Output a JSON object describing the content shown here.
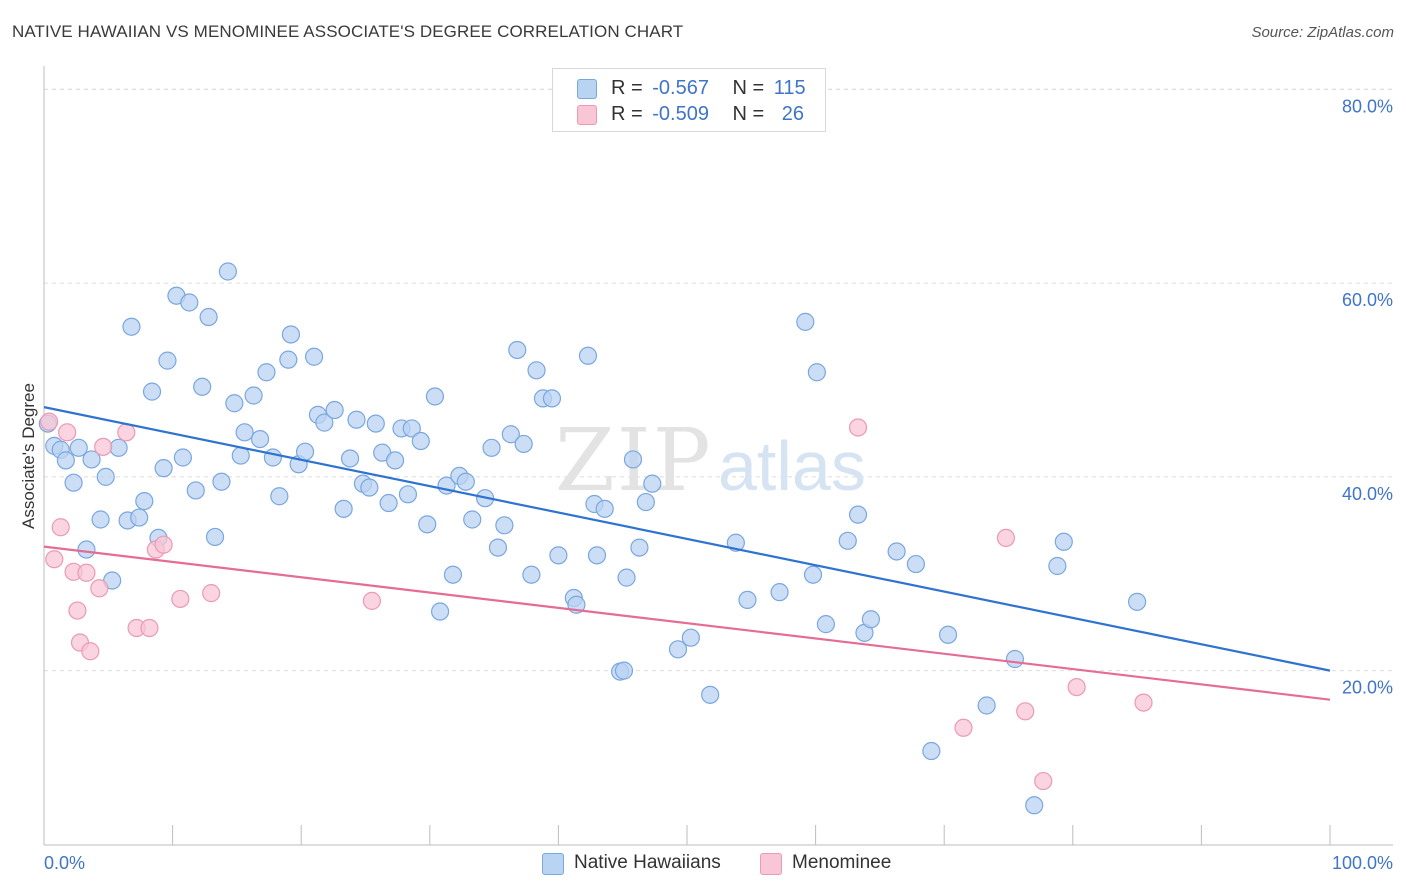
{
  "title": "NATIVE HAWAIIAN VS MENOMINEE ASSOCIATE'S DEGREE CORRELATION CHART",
  "source": "Source: ZipAtlas.com",
  "watermark": {
    "zip": "ZIP",
    "atlas": "atlas"
  },
  "colors": {
    "blue_fill": "#b9d3f3",
    "blue_stroke": "#7aa7de",
    "blue_line": "#2f73d0",
    "pink_fill": "#f8c6d5",
    "pink_stroke": "#ec99b4",
    "pink_line": "#e46c95",
    "tick_text": "#3f74c8",
    "grid": "#dcdcdc"
  },
  "legend": {
    "rows": [
      {
        "r_label": "R =",
        "r_value": "-0.567",
        "n_label": "N =",
        "n_value": "115"
      },
      {
        "r_label": "R =",
        "r_value": "-0.509",
        "n_label": "N =",
        "n_value": "26"
      }
    ]
  },
  "bottom_legend": {
    "series1": "Native Hawaiians",
    "series2": "Menominee"
  },
  "chart_data": {
    "type": "scatter",
    "xlabel": "",
    "ylabel": "Associate's Degree",
    "xlim": [
      0,
      100
    ],
    "ylim": [
      2,
      82
    ],
    "x_tick_labels": [
      "0.0%",
      "100.0%"
    ],
    "y_ticks": [
      20,
      40,
      60,
      80
    ],
    "y_tick_labels": [
      "20.0%",
      "40.0%",
      "60.0%",
      "80.0%"
    ],
    "grid": true,
    "series": [
      {
        "name": "Native Hawaiians",
        "trend": [
          [
            0,
            47.2
          ],
          [
            100,
            20.0
          ]
        ],
        "points": [
          [
            0.8,
            43.2
          ],
          [
            1.3,
            42.8
          ],
          [
            1.7,
            41.7
          ],
          [
            2.3,
            39.4
          ],
          [
            2.7,
            43.0
          ],
          [
            3.3,
            32.5
          ],
          [
            3.7,
            41.8
          ],
          [
            4.4,
            35.6
          ],
          [
            4.8,
            40.0
          ],
          [
            5.3,
            29.3
          ],
          [
            5.8,
            43.0
          ],
          [
            6.5,
            35.5
          ],
          [
            6.8,
            55.5
          ],
          [
            7.4,
            35.8
          ],
          [
            7.8,
            37.5
          ],
          [
            8.4,
            48.8
          ],
          [
            8.9,
            33.7
          ],
          [
            9.3,
            40.9
          ],
          [
            9.6,
            52.0
          ],
          [
            10.3,
            58.7
          ],
          [
            10.8,
            42.0
          ],
          [
            11.3,
            58.0
          ],
          [
            11.8,
            38.6
          ],
          [
            12.3,
            49.3
          ],
          [
            12.8,
            56.5
          ],
          [
            13.3,
            33.8
          ],
          [
            13.8,
            39.5
          ],
          [
            14.3,
            61.2
          ],
          [
            14.8,
            47.6
          ],
          [
            15.3,
            42.2
          ],
          [
            15.6,
            44.6
          ],
          [
            16.3,
            48.4
          ],
          [
            16.8,
            43.9
          ],
          [
            17.3,
            50.8
          ],
          [
            17.8,
            42.0
          ],
          [
            18.3,
            38.0
          ],
          [
            19.0,
            52.1
          ],
          [
            19.2,
            54.7
          ],
          [
            19.8,
            41.3
          ],
          [
            20.3,
            42.6
          ],
          [
            21.0,
            52.4
          ],
          [
            21.3,
            46.4
          ],
          [
            21.8,
            45.6
          ],
          [
            22.6,
            46.9
          ],
          [
            23.3,
            36.7
          ],
          [
            23.8,
            41.9
          ],
          [
            24.3,
            45.9
          ],
          [
            24.8,
            39.3
          ],
          [
            25.3,
            38.9
          ],
          [
            25.8,
            45.5
          ],
          [
            26.3,
            42.5
          ],
          [
            26.8,
            37.3
          ],
          [
            27.3,
            41.7
          ],
          [
            27.8,
            45.0
          ],
          [
            28.3,
            38.2
          ],
          [
            28.6,
            45.0
          ],
          [
            29.3,
            43.7
          ],
          [
            29.8,
            35.1
          ],
          [
            30.4,
            48.3
          ],
          [
            30.8,
            26.1
          ],
          [
            31.3,
            39.1
          ],
          [
            31.8,
            29.9
          ],
          [
            32.3,
            40.1
          ],
          [
            32.8,
            39.5
          ],
          [
            33.3,
            35.6
          ],
          [
            34.3,
            37.8
          ],
          [
            34.8,
            43.0
          ],
          [
            35.3,
            32.7
          ],
          [
            35.8,
            35.0
          ],
          [
            36.3,
            44.4
          ],
          [
            36.8,
            53.1
          ],
          [
            37.3,
            43.4
          ],
          [
            37.9,
            29.9
          ],
          [
            38.3,
            51.0
          ],
          [
            38.8,
            48.1
          ],
          [
            39.5,
            48.1
          ],
          [
            40.0,
            31.9
          ],
          [
            41.2,
            27.5
          ],
          [
            41.4,
            26.8
          ],
          [
            42.3,
            52.5
          ],
          [
            42.8,
            37.2
          ],
          [
            43.0,
            31.9
          ],
          [
            43.6,
            36.7
          ],
          [
            44.8,
            19.9
          ],
          [
            45.1,
            20.0
          ],
          [
            45.3,
            29.6
          ],
          [
            45.8,
            41.8
          ],
          [
            46.3,
            32.7
          ],
          [
            46.8,
            37.4
          ],
          [
            47.3,
            39.3
          ],
          [
            49.3,
            22.2
          ],
          [
            50.3,
            23.4
          ],
          [
            51.8,
            17.5
          ],
          [
            53.8,
            33.2
          ],
          [
            54.7,
            27.3
          ],
          [
            57.2,
            28.1
          ],
          [
            59.2,
            56.0
          ],
          [
            59.8,
            29.9
          ],
          [
            60.1,
            50.8
          ],
          [
            60.8,
            24.8
          ],
          [
            62.5,
            33.4
          ],
          [
            63.3,
            36.1
          ],
          [
            63.8,
            23.9
          ],
          [
            64.3,
            25.3
          ],
          [
            66.3,
            32.3
          ],
          [
            67.8,
            31.0
          ],
          [
            70.3,
            23.7
          ],
          [
            73.3,
            16.4
          ],
          [
            75.5,
            21.2
          ],
          [
            77.0,
            6.1
          ],
          [
            78.8,
            30.8
          ],
          [
            79.3,
            33.3
          ],
          [
            69.0,
            11.7
          ],
          [
            85.0,
            27.1
          ],
          [
            0.3,
            45.5
          ]
        ]
      },
      {
        "name": "Menominee",
        "trend": [
          [
            0,
            32.8
          ],
          [
            100,
            17.0
          ]
        ],
        "points": [
          [
            0.4,
            45.7
          ],
          [
            0.8,
            31.5
          ],
          [
            1.3,
            34.8
          ],
          [
            1.8,
            44.6
          ],
          [
            2.3,
            30.2
          ],
          [
            2.6,
            26.2
          ],
          [
            2.8,
            22.9
          ],
          [
            3.3,
            30.1
          ],
          [
            3.6,
            22.0
          ],
          [
            4.3,
            28.5
          ],
          [
            4.6,
            43.1
          ],
          [
            6.4,
            44.6
          ],
          [
            7.2,
            24.4
          ],
          [
            8.2,
            24.4
          ],
          [
            8.7,
            32.5
          ],
          [
            9.3,
            33.0
          ],
          [
            10.6,
            27.4
          ],
          [
            13.0,
            28.0
          ],
          [
            25.5,
            27.2
          ],
          [
            63.3,
            45.1
          ],
          [
            71.5,
            14.1
          ],
          [
            74.8,
            33.7
          ],
          [
            76.3,
            15.8
          ],
          [
            77.7,
            8.6
          ],
          [
            80.3,
            18.3
          ],
          [
            85.5,
            16.7
          ]
        ]
      }
    ]
  }
}
